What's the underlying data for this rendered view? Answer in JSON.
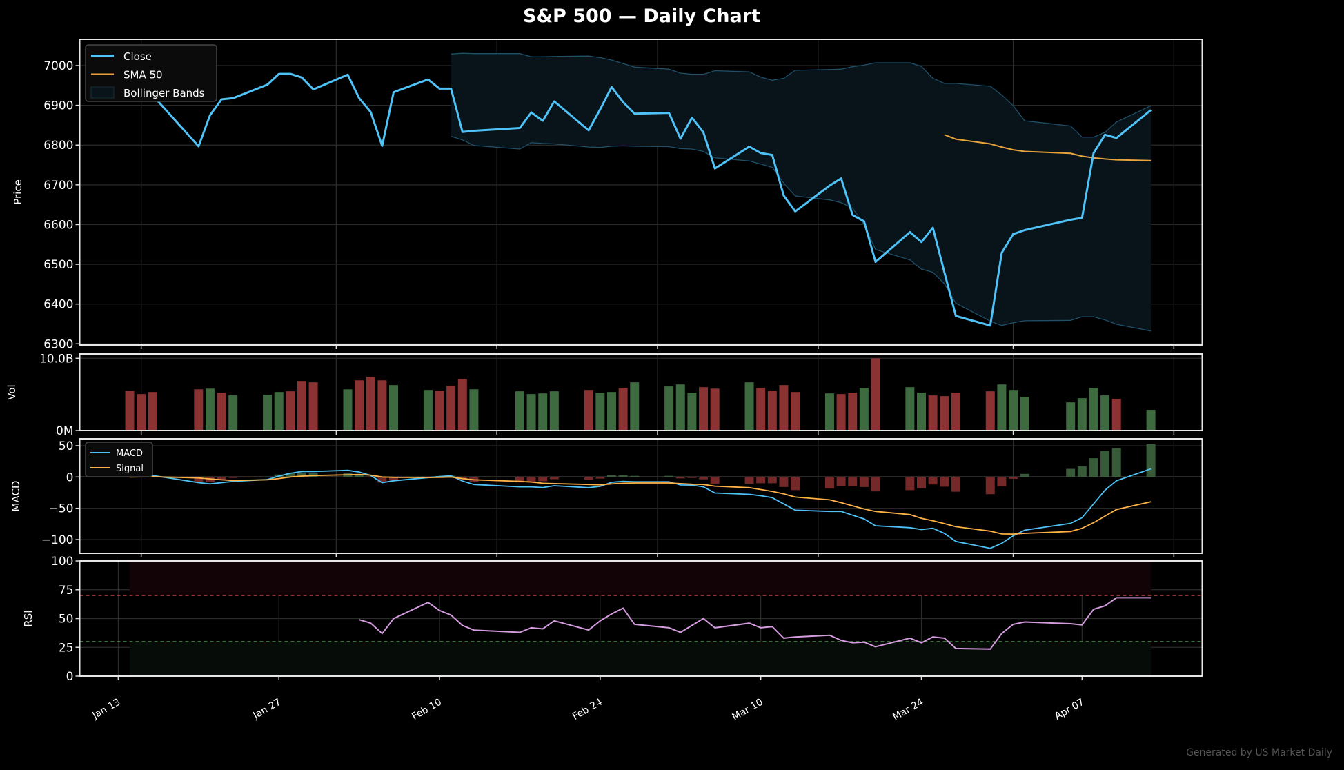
{
  "title": "S&P 500 — Daily Chart",
  "footer": "Generated by US Market Daily",
  "colors": {
    "background": "#000000",
    "close": "#4fc3f7",
    "sma50": "#e8a33d",
    "bollinger_edge": "#1f5068",
    "bollinger_fill": "#08131a",
    "volume_up": "#3d6b3f",
    "volume_down": "#8b3232",
    "macd": "#4fc3f7",
    "signal": "#ffb347",
    "hist_up": "#3a5f3c",
    "hist_down": "#7a2a2a",
    "rsi": "#d69ce0",
    "overbought": "#a03a3a",
    "oversold": "#3f7f3f"
  },
  "chart_data": {
    "type": "line",
    "x": [
      "Jan 14",
      "Jan 15",
      "Jan 16",
      "Jan 20",
      "Jan 21",
      "Jan 22",
      "Jan 23",
      "Jan 26",
      "Jan 27",
      "Jan 28",
      "Jan 29",
      "Jan 30",
      "Feb 2",
      "Feb 3",
      "Feb 4",
      "Feb 5",
      "Feb 6",
      "Feb 9",
      "Feb 10",
      "Feb 11",
      "Feb 12",
      "Feb 13",
      "Feb 17",
      "Feb 18",
      "Feb 19",
      "Feb 20",
      "Feb 23",
      "Feb 24",
      "Feb 25",
      "Feb 26",
      "Feb 27",
      "Mar 2",
      "Mar 3",
      "Mar 4",
      "Mar 5",
      "Mar 6",
      "Mar 9",
      "Mar 10",
      "Mar 11",
      "Mar 12",
      "Mar 13",
      "Mar 16",
      "Mar 17",
      "Mar 18",
      "Mar 19",
      "Mar 20",
      "Mar 23",
      "Mar 24",
      "Mar 25",
      "Mar 26",
      "Mar 27",
      "Mar 30",
      "Mar 31",
      "Apr 1",
      "Apr 2",
      "Apr 6",
      "Apr 7",
      "Apr 8",
      "Apr 9",
      "Apr 10",
      "Apr 13"
    ],
    "xticks": [
      "Jan 13",
      "Jan 27",
      "Feb 10",
      "Feb 24",
      "Mar 10",
      "Mar 24",
      "Apr 07"
    ],
    "grid": true,
    "panels": {
      "price": {
        "ylabel": "Price",
        "ylim": [
          6297,
          7066
        ],
        "yticks": [
          6300,
          6400,
          6500,
          6600,
          6700,
          6800,
          6900,
          7000
        ],
        "ytick_labels": [
          "6300",
          "6400",
          "6500",
          "6600",
          "6700",
          "6800",
          "6900",
          "7000"
        ],
        "legend": {
          "placement": "top-left",
          "items": [
            "Close",
            "SMA 50",
            "Bollinger Bands"
          ]
        },
        "close": [
          6949,
          6944,
          6925,
          6797,
          6875,
          6915,
          6918,
          6952,
          6979,
          6979,
          6970,
          6940,
          6977,
          6918,
          6883,
          6798,
          6933,
          6965,
          6942,
          6942,
          6833,
          6836,
          6843,
          6882,
          6861,
          6910,
          6837,
          6890,
          6946,
          6908,
          6879,
          6881,
          6816,
          6869,
          6832,
          6741,
          6796,
          6780,
          6775,
          6673,
          6633,
          6698,
          6716,
          6624,
          6608,
          6506,
          6581,
          6556,
          6592,
          6480,
          6370,
          6346,
          6529,
          6576,
          6586,
          6612,
          6617,
          6780,
          6826,
          6818,
          6888
        ],
        "sma50": [
          null,
          null,
          null,
          null,
          null,
          null,
          null,
          null,
          null,
          null,
          null,
          null,
          null,
          null,
          null,
          null,
          null,
          null,
          null,
          null,
          null,
          null,
          null,
          null,
          null,
          null,
          null,
          null,
          null,
          null,
          null,
          null,
          null,
          null,
          null,
          null,
          null,
          null,
          null,
          null,
          null,
          null,
          null,
          null,
          null,
          null,
          null,
          null,
          null,
          6826,
          6815,
          6803,
          6795,
          6788,
          6784,
          6779,
          6772,
          6768,
          6765,
          6763,
          6761
        ],
        "bollinger_upper": [
          null,
          null,
          null,
          null,
          null,
          null,
          null,
          null,
          null,
          null,
          null,
          null,
          null,
          null,
          null,
          null,
          null,
          null,
          null,
          7029,
          7031,
          7030,
          7030,
          7022,
          7022,
          7023,
          7024,
          7020,
          7014,
          7005,
          6996,
          6991,
          6981,
          6978,
          6978,
          6987,
          6984,
          6971,
          6963,
          6968,
          6988,
          6990,
          6991,
          6997,
          7001,
          7007,
          7007,
          6998,
          6968,
          6955,
          6955,
          6948,
          6926,
          6899,
          6861,
          6848,
          6820,
          6820,
          6832,
          6858,
          6899
        ],
        "bollinger_lower": [
          null,
          null,
          null,
          null,
          null,
          null,
          null,
          null,
          null,
          null,
          null,
          null,
          null,
          null,
          null,
          null,
          null,
          null,
          null,
          6822,
          6813,
          6799,
          6790,
          6806,
          6804,
          6803,
          6795,
          6794,
          6797,
          6798,
          6797,
          6796,
          6791,
          6790,
          6784,
          6768,
          6760,
          6752,
          6744,
          6704,
          6672,
          6662,
          6655,
          6641,
          6600,
          6537,
          6511,
          6488,
          6480,
          6451,
          6402,
          6357,
          6346,
          6353,
          6358,
          6359,
          6368,
          6368,
          6360,
          6349,
          6332
        ]
      },
      "volume": {
        "ylabel": "Vol",
        "unit": "B",
        "ylim": [
          0,
          10.6
        ],
        "yticks": [
          0,
          10
        ],
        "ytick_labels": [
          "0M",
          "10.0B"
        ],
        "values": [
          5.5,
          5.05,
          5.33,
          5.7,
          5.8,
          5.24,
          4.86,
          4.95,
          5.33,
          5.43,
          6.86,
          6.67,
          5.7,
          6.95,
          7.43,
          6.95,
          6.29,
          5.62,
          5.52,
          6.19,
          7.14,
          5.71,
          5.43,
          5.05,
          5.14,
          5.43,
          5.62,
          5.24,
          5.33,
          5.9,
          6.67,
          6.1,
          6.38,
          5.24,
          6.0,
          5.8,
          6.67,
          5.9,
          5.52,
          6.29,
          5.33,
          5.14,
          5.05,
          5.24,
          5.9,
          10.0,
          6.0,
          5.24,
          4.86,
          4.76,
          5.24,
          5.43,
          6.38,
          5.62,
          4.67,
          3.9,
          4.48,
          5.9,
          4.86,
          4.38,
          2.86
        ],
        "direction": [
          "down",
          "down",
          "down",
          "down",
          "up",
          "down",
          "up",
          "up",
          "up",
          "down",
          "down",
          "down",
          "up",
          "down",
          "down",
          "down",
          "up",
          "up",
          "down",
          "down",
          "down",
          "up",
          "up",
          "up",
          "up",
          "up",
          "down",
          "up",
          "up",
          "down",
          "up",
          "up",
          "up",
          "up",
          "down",
          "down",
          "up",
          "down",
          "down",
          "down",
          "down",
          "up",
          "down",
          "down",
          "up",
          "down",
          "up",
          "up",
          "down",
          "down",
          "down",
          "down",
          "up",
          "up",
          "up",
          "up",
          "up",
          "up",
          "up",
          "down",
          "up"
        ]
      },
      "macd": {
        "ylabel": "MACD",
        "ylim": [
          -122,
          61
        ],
        "yticks": [
          50,
          0,
          -50,
          -100
        ],
        "ytick_labels": [
          "50",
          "0",
          "−50",
          "−100"
        ],
        "legend": {
          "placement": "top-left",
          "items": [
            "MACD",
            "Signal"
          ]
        },
        "macd": [
          1,
          2,
          2.5,
          -9,
          -11,
          -9,
          -7,
          -4,
          1.5,
          6,
          8.7,
          8.7,
          10.6,
          8,
          2.5,
          -9,
          -6,
          -1,
          0.7,
          2,
          -6.5,
          -12,
          -15.7,
          -15.7,
          -16.8,
          -14,
          -17,
          -15,
          -8.4,
          -7,
          -7.7,
          -7.7,
          -12.8,
          -13,
          -15.7,
          -25.5,
          -27.7,
          -30,
          -33,
          -43,
          -53,
          -55,
          -55,
          -61,
          -67,
          -78,
          -81,
          -84,
          -82,
          -90,
          -103,
          -114,
          -106,
          -94,
          -85,
          -74,
          -65,
          -43,
          -21,
          -6,
          13
        ],
        "signal": [
          0,
          0.3,
          0.5,
          -1.5,
          -3,
          -4.5,
          -5.5,
          -4.5,
          -2.5,
          0,
          1.5,
          2.3,
          3.6,
          4,
          3,
          0,
          -0.5,
          -0.7,
          -0.5,
          0,
          -2.5,
          -4.5,
          -7,
          -8,
          -10,
          -10.5,
          -12,
          -12.5,
          -11,
          -10,
          -9.5,
          -9.5,
          -10.5,
          -11.5,
          -12,
          -14.6,
          -17,
          -20,
          -23,
          -27,
          -32,
          -36.5,
          -41,
          -46,
          -51,
          -55,
          -60,
          -66,
          -70,
          -74.5,
          -79.5,
          -86.5,
          -91,
          -91.2,
          -90,
          -87,
          -82,
          -73,
          -62.5,
          -52,
          -39.5
        ],
        "histogram": [
          1,
          1.7,
          2,
          -7.5,
          -8,
          -4.5,
          -1.5,
          0.5,
          4,
          6,
          7.2,
          6.4,
          7,
          4,
          -0.5,
          -9,
          -5.5,
          -0.3,
          1.2,
          2,
          -4,
          -7.5,
          -8.7,
          -7.7,
          -6.8,
          -3.5,
          -5,
          -2.5,
          2.6,
          3,
          1.8,
          1.8,
          -2.3,
          -1.5,
          -3.7,
          -10.9,
          -10.7,
          -10,
          -10,
          -16,
          -21,
          -18.5,
          -14,
          -15,
          -16,
          -23,
          -21,
          -18,
          -12,
          -15.5,
          -23.5,
          -27.5,
          -15,
          -2.8,
          5,
          13,
          17,
          30,
          41.5,
          46,
          52.5
        ]
      },
      "rsi": {
        "ylabel": "RSI",
        "ylim": [
          0,
          100
        ],
        "yticks": [
          0,
          25,
          50,
          75,
          100
        ],
        "ytick_labels": [
          "0",
          "25",
          "50",
          "75",
          "100"
        ],
        "overbought": 70,
        "oversold": 30,
        "values": [
          null,
          null,
          null,
          null,
          null,
          null,
          null,
          null,
          null,
          null,
          null,
          null,
          null,
          49,
          46,
          37,
          50,
          64,
          57,
          53,
          44,
          40,
          38,
          42,
          41,
          48,
          40,
          48,
          54,
          59,
          45,
          42,
          38,
          44,
          50,
          42,
          46,
          42,
          43,
          33,
          34,
          35.5,
          31,
          29,
          29.5,
          25.5,
          33,
          29,
          34,
          33,
          24,
          23.5,
          37,
          45,
          47,
          45.5,
          44.5,
          58,
          61,
          68,
          68
        ]
      }
    }
  }
}
